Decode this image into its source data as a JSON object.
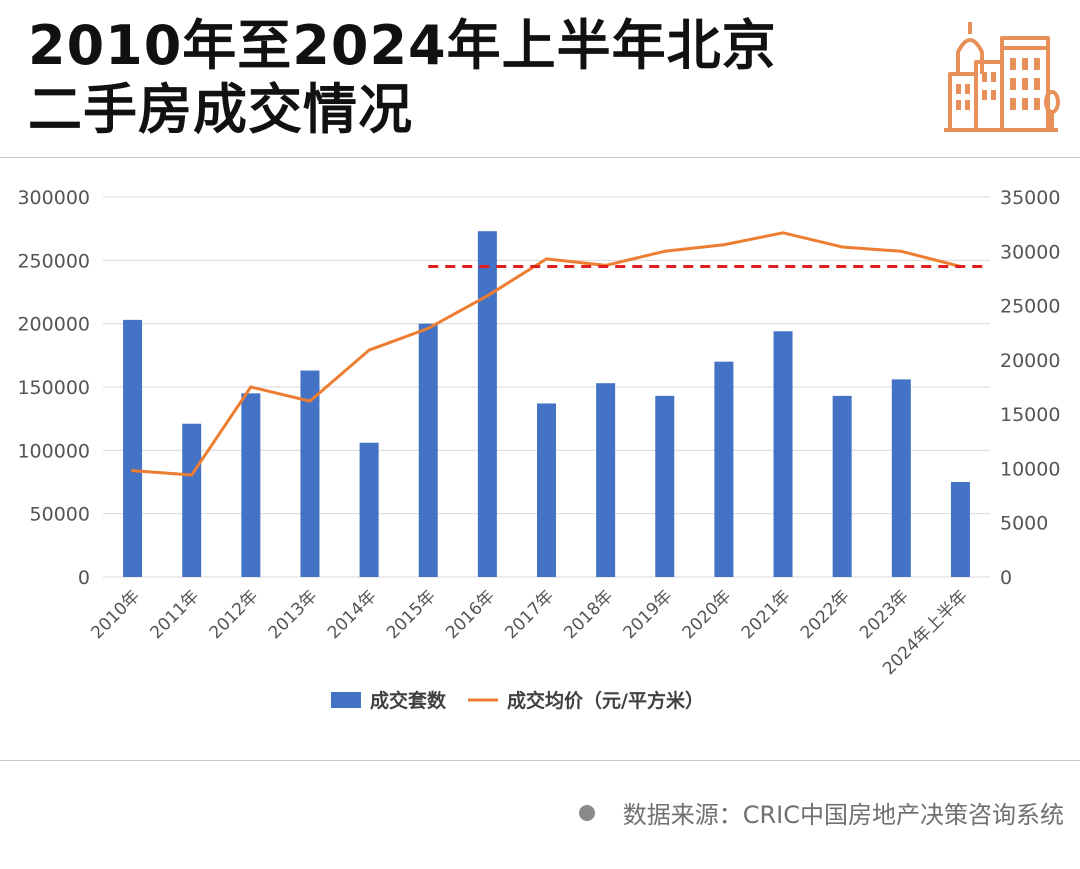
{
  "header": {
    "title_line1": "2010年至2024年上半年北京",
    "title_line2": "二手房成交情况",
    "logo_icon": "city-buildings-icon"
  },
  "footer": {
    "source": "数据来源：CRIC中国房地产决策咨询系统"
  },
  "colors": {
    "bar": "#4472C4",
    "line": "#ED7D31",
    "reference_line": "#E02020",
    "logo": "#E8905A",
    "grid": "#D9D9D9"
  },
  "chart_data": {
    "type": "bar",
    "categories": [
      "2010年",
      "2011年",
      "2012年",
      "2013年",
      "2014年",
      "2015年",
      "2016年",
      "2017年",
      "2018年",
      "2019年",
      "2020年",
      "2021年",
      "2022年",
      "2023年",
      "2024年上半年"
    ],
    "series": [
      {
        "name": "成交套数",
        "type": "bar",
        "axis": "left",
        "values": [
          203000,
          121000,
          145000,
          163000,
          106000,
          200000,
          273000,
          137000,
          153000,
          143000,
          170000,
          194000,
          143000,
          156000,
          75000
        ]
      },
      {
        "name": "成交均价（元/平方米）",
        "type": "line",
        "axis": "right",
        "values": [
          9800,
          9400,
          17500,
          16200,
          20900,
          22900,
          25900,
          29300,
          28700,
          30000,
          30600,
          31700,
          30400,
          30000,
          28600
        ]
      }
    ],
    "reference_line": {
      "axis": "right",
      "value": 28600,
      "from_category": "2015年",
      "to_category": "2024年上半年",
      "style": "dashed"
    },
    "y_left": {
      "ylim": [
        0,
        300000
      ],
      "ticks": [
        "0",
        "50000",
        "100000",
        "150000",
        "200000",
        "250000",
        "300000"
      ]
    },
    "y_right": {
      "ylim": [
        0,
        35000
      ],
      "ticks": [
        "0",
        "5000",
        "10000",
        "15000",
        "20000",
        "25000",
        "30000",
        "35000"
      ]
    },
    "grid": true,
    "legend_position": "bottom"
  }
}
